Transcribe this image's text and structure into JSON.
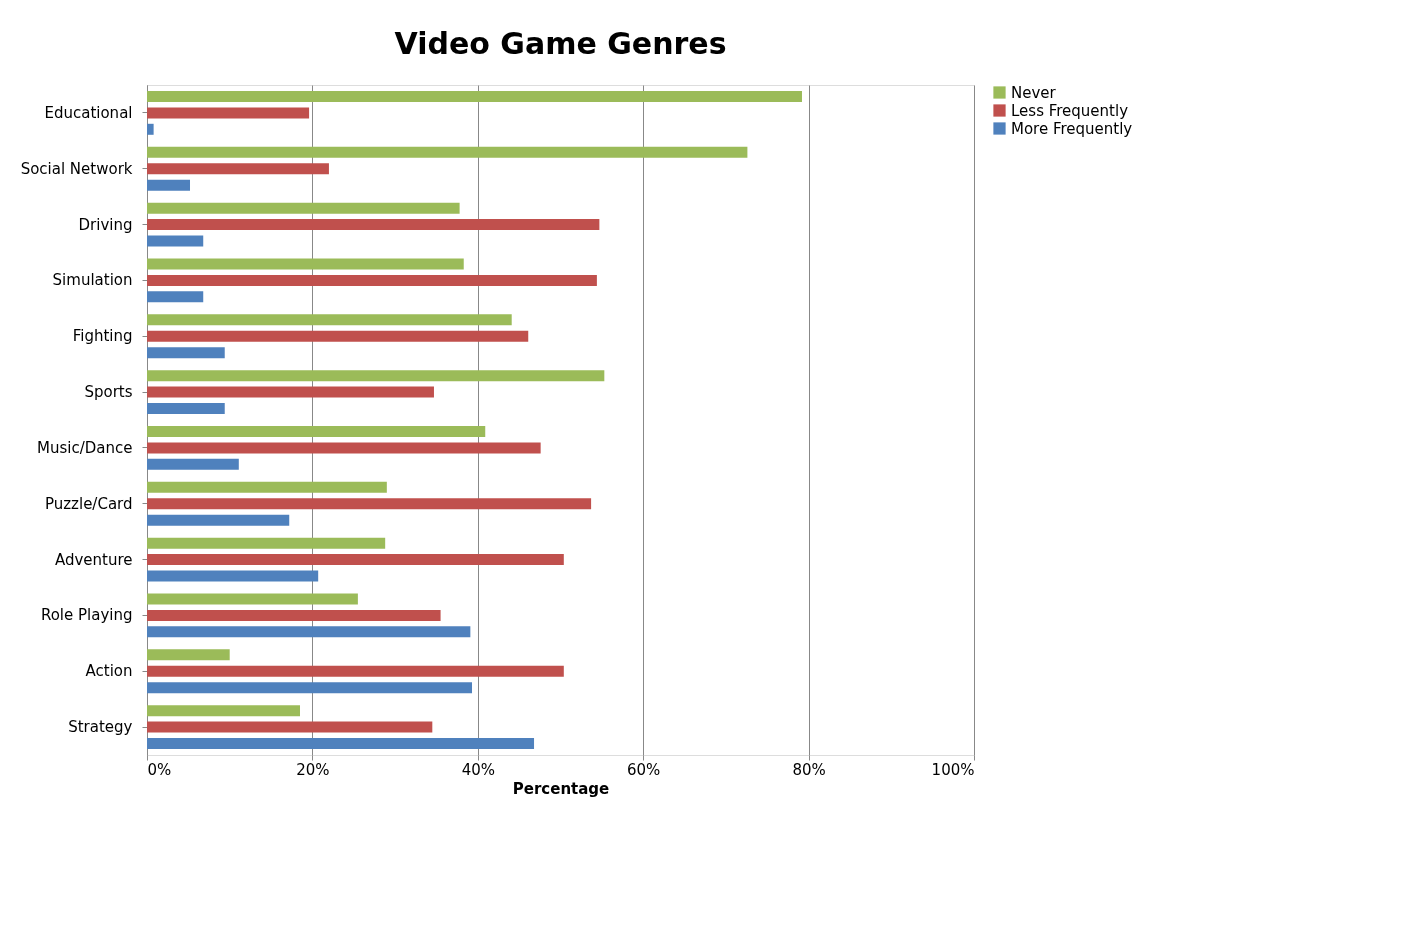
{
  "chart_data": {
    "type": "bar",
    "orientation": "horizontal",
    "title": "Video Game Genres",
    "xlabel": "Percentage",
    "categories": [
      "Educational",
      "Social Network",
      "Driving",
      "Simulation",
      "Fighting",
      "Sports",
      "Music/Dance",
      "Puzzle/Card",
      "Adventure",
      "Role Playing",
      "Action",
      "Strategy"
    ],
    "series": [
      {
        "name": "Never",
        "color": "#9bbb59",
        "values": [
          79.2,
          72.6,
          37.8,
          38.3,
          44.1,
          55.3,
          40.9,
          29.0,
          28.8,
          25.5,
          10.0,
          18.5
        ]
      },
      {
        "name": "Less Frequently",
        "color": "#c0504d",
        "values": [
          19.6,
          22.0,
          54.7,
          54.4,
          46.1,
          34.7,
          47.6,
          53.7,
          50.4,
          35.5,
          50.4,
          34.5
        ]
      },
      {
        "name": "More Frequently",
        "color": "#4f81bd",
        "values": [
          0.8,
          5.2,
          6.8,
          6.8,
          9.4,
          9.4,
          11.1,
          17.2,
          20.7,
          39.1,
          39.3,
          46.8
        ]
      }
    ],
    "xlim": [
      0,
      100
    ],
    "xticks": [
      {
        "value": 0,
        "label": "0%"
      },
      {
        "value": 20,
        "label": "20%"
      },
      {
        "value": 40,
        "label": "40%"
      },
      {
        "value": 60,
        "label": "60%"
      },
      {
        "value": 80,
        "label": "80%"
      },
      {
        "value": 100,
        "label": "100%"
      }
    ],
    "grid": "x",
    "legend": "right"
  }
}
